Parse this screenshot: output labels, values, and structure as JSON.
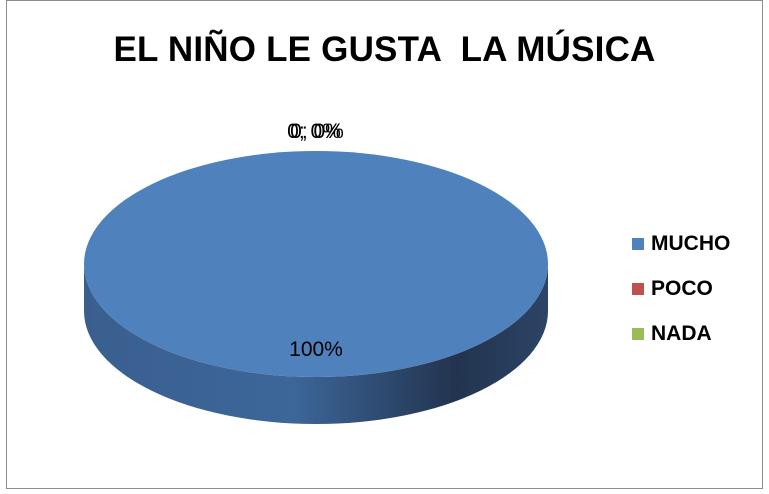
{
  "chart_data": {
    "type": "pie",
    "title": "EL NIÑO LE GUSTA  LA MÚSICA",
    "categories": [
      "MUCHO",
      "POCO",
      "NADA"
    ],
    "values": [
      100,
      0,
      0
    ],
    "data_labels": [
      "100%",
      "0; 0%",
      "0; 0%"
    ],
    "colors": [
      "#4f81bd",
      "#c0504d",
      "#9bbb59"
    ],
    "legend_position": "right",
    "style": "3d"
  }
}
